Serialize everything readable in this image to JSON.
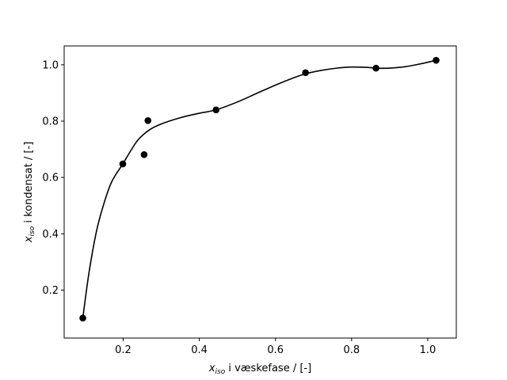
{
  "chart_data": {
    "type": "scatter",
    "title": "",
    "xlabel": {
      "var": "x",
      "sub": "iso",
      "rest": " i væskefase / [-]"
    },
    "ylabel": {
      "var": "x",
      "sub": "iso",
      "rest": " i kondensat / [-]"
    },
    "xlim": [
      0.045,
      1.075
    ],
    "ylim": [
      0.03,
      1.067
    ],
    "xticks": [
      0.2,
      0.4,
      0.6,
      0.8,
      1.0
    ],
    "xtick_labels": [
      "0.2",
      "0.4",
      "0.6",
      "0.8",
      "1.0"
    ],
    "yticks": [
      0.2,
      0.4,
      0.6,
      0.8,
      1.0
    ],
    "ytick_labels": [
      "0.2",
      "0.4",
      "0.6",
      "0.8",
      "1.0"
    ],
    "grid": false,
    "series": [
      {
        "kind": "points",
        "x": [
          0.094,
          0.199,
          0.255,
          0.265,
          0.444,
          0.679,
          0.864,
          1.022
        ],
        "y": [
          0.101,
          0.648,
          0.681,
          0.802,
          0.84,
          0.972,
          0.988,
          1.016
        ],
        "color": "#000000"
      },
      {
        "kind": "line",
        "x": [
          0.094,
          0.11,
          0.13,
          0.15,
          0.17,
          0.199,
          0.22,
          0.24,
          0.27,
          0.3,
          0.35,
          0.4,
          0.444,
          0.5,
          0.55,
          0.6,
          0.65,
          0.679,
          0.72,
          0.76,
          0.8,
          0.84,
          0.864,
          0.9,
          0.94,
          0.98,
          1.022
        ],
        "y": [
          0.101,
          0.26,
          0.41,
          0.51,
          0.585,
          0.648,
          0.695,
          0.735,
          0.77,
          0.79,
          0.812,
          0.828,
          0.84,
          0.868,
          0.898,
          0.928,
          0.955,
          0.968,
          0.98,
          0.988,
          0.992,
          0.991,
          0.988,
          0.988,
          0.993,
          1.003,
          1.016
        ],
        "color": "#000000"
      }
    ]
  }
}
